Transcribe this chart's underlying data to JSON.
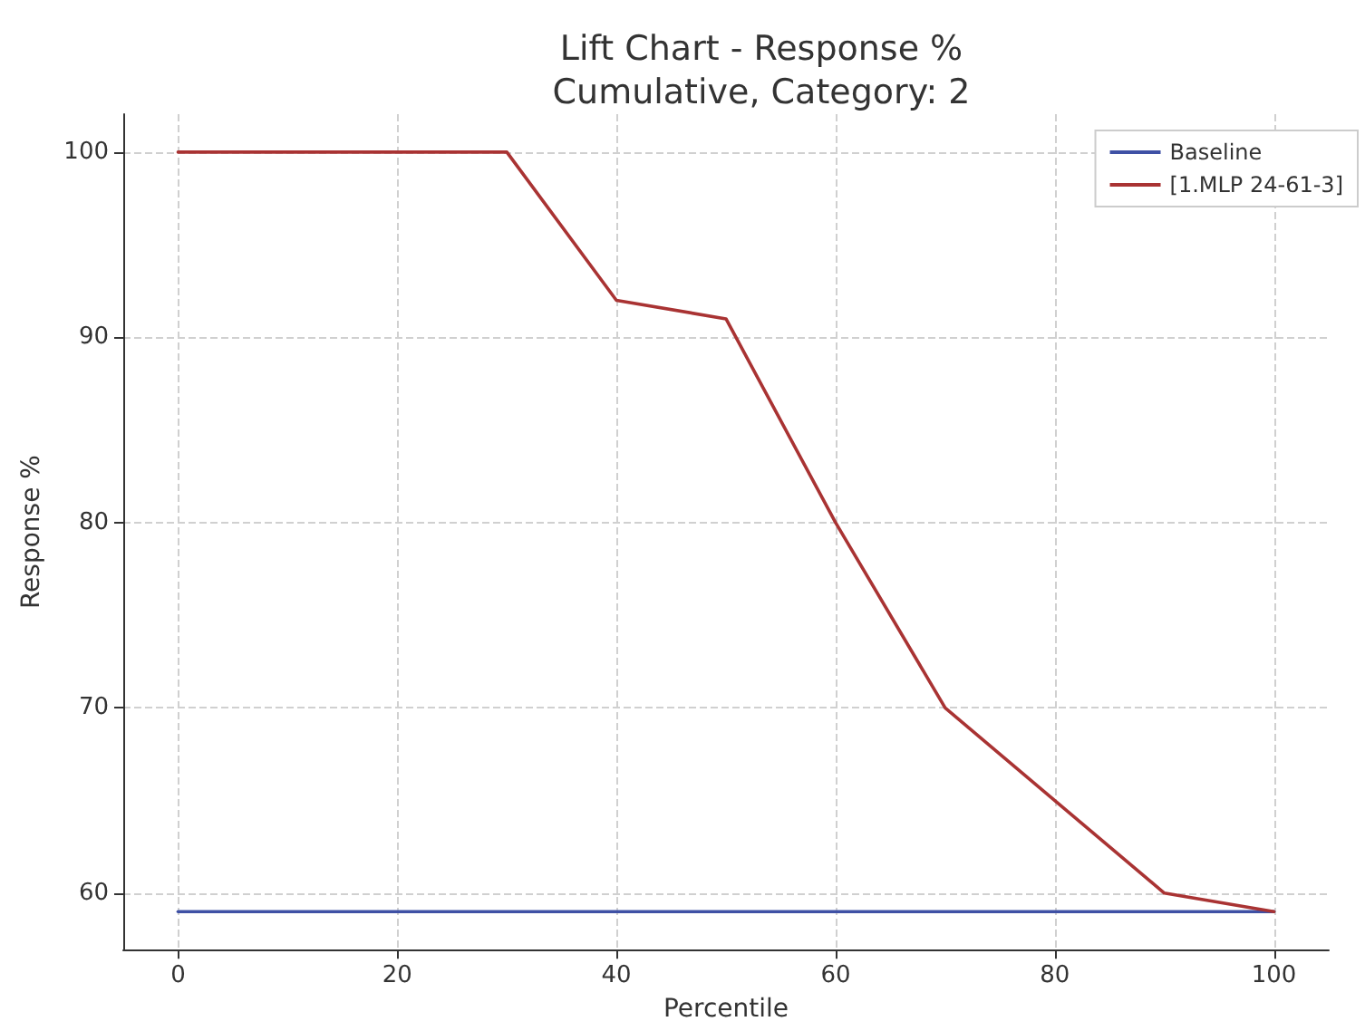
{
  "chart_data": {
    "type": "line",
    "title": "Lift Chart - Response %\nCumulative, Category: 2",
    "xlabel": "Percentile",
    "ylabel": "Response %",
    "x": [
      0,
      10,
      20,
      30,
      40,
      50,
      60,
      70,
      80,
      90,
      100
    ],
    "series": [
      {
        "name": "Baseline",
        "color": "#3f51a5",
        "values": [
          59,
          59,
          59,
          59,
          59,
          59,
          59,
          59,
          59,
          59,
          59
        ]
      },
      {
        "name": "[1.MLP 24-61-3]",
        "color": "#a93333",
        "values": [
          100,
          100,
          100,
          100,
          92,
          91,
          80,
          70,
          65,
          60,
          59
        ]
      }
    ],
    "xlim": [
      -5,
      105
    ],
    "xticks": [
      0,
      20,
      40,
      60,
      80,
      100
    ],
    "ylim": [
      56.95,
      102.05
    ],
    "yticks": [
      60,
      70,
      80,
      90,
      100
    ],
    "grid": true,
    "legend": "top right",
    "marker": "none"
  }
}
